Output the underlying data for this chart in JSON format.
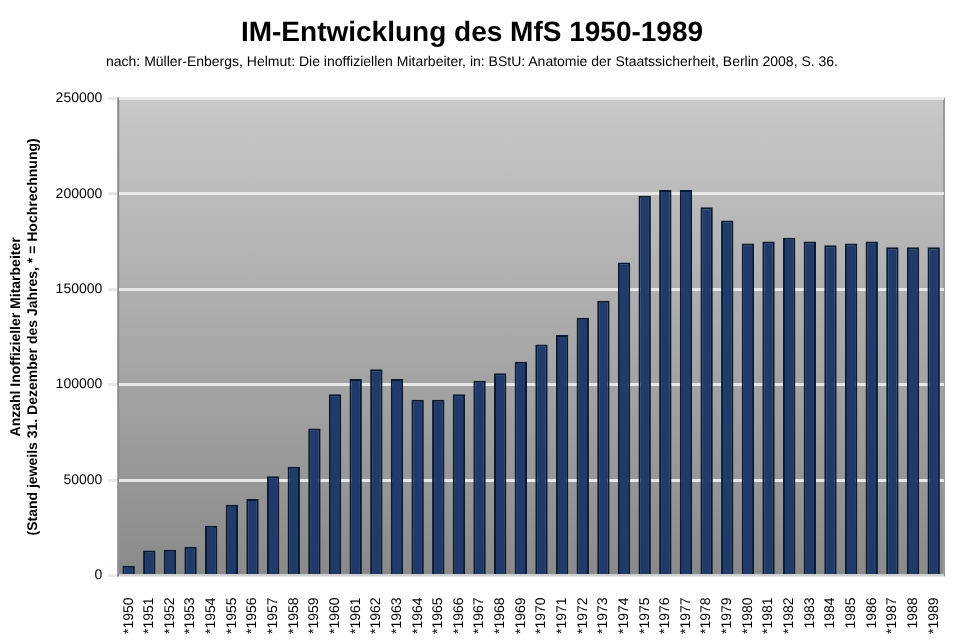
{
  "chart_data": {
    "type": "bar",
    "title": "IM-Entwicklung des MfS 1950-1989",
    "subtitle": "nach: Müller-Enbergs, Helmut: Die inoffiziellen Mitarbeiter, in: BStU: Anatomie der Staatssicherheit, Berlin 2008, S. 36.",
    "ylabel": "Anzahl Inoffizieller Mitarbeiter\n(Stand jeweils 31. Dezember des Jahres, * = Hochrechnung)",
    "categories": [
      "*1950",
      "*1951",
      "*1952",
      "*1953",
      "*1954",
      "*1955",
      "*1956",
      "*1957",
      "*1958",
      "*1959",
      "*1960",
      "*1961",
      "*1962",
      "*1963",
      "*1964",
      "*1965",
      "*1966",
      "*1967",
      "*1968",
      "*1969",
      "*1970",
      "*1971",
      "*1972",
      "*1973",
      "*1974",
      "*1975",
      "*1976",
      "*1977",
      "*1978",
      "*1979",
      "*1980",
      "*1981",
      "*1982",
      "1983",
      "1984",
      "1985",
      "1986",
      "*1987",
      "1988",
      "*1989"
    ],
    "values": [
      5000,
      13000,
      13500,
      15000,
      26000,
      37000,
      40000,
      52000,
      57000,
      77000,
      95000,
      103000,
      108000,
      103000,
      92000,
      92000,
      95000,
      102000,
      106000,
      112000,
      121000,
      126000,
      135000,
      144000,
      164000,
      199000,
      202000,
      202000,
      193000,
      186000,
      174000,
      175000,
      177000,
      175000,
      173000,
      174000,
      175000,
      172000,
      172000,
      172000
    ],
    "color": "#1f3a6b",
    "ylim": [
      0,
      250000
    ],
    "yticks": [
      0,
      50000,
      100000,
      150000,
      200000,
      250000
    ],
    "grid": "y"
  }
}
